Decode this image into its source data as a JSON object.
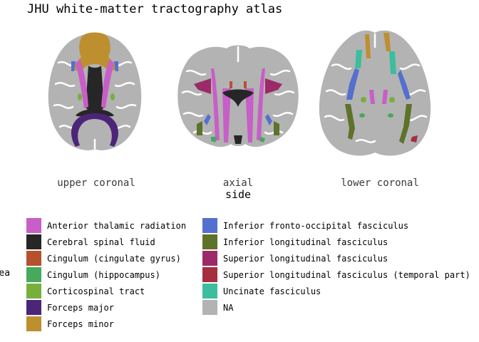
{
  "chart_data": {
    "type": "other",
    "title": "JHU white-matter tractography atlas",
    "xlabel": "side",
    "legend_title": "area",
    "legend_placement": "bottom",
    "views": [
      "upper coronal",
      "axial",
      "lower coronal"
    ],
    "legend": [
      {
        "name": "Anterior thalamic radiation",
        "color": "#C85EC8"
      },
      {
        "name": "Cerebral spinal fluid",
        "color": "#262626"
      },
      {
        "name": "Cingulum (cingulate gyrus)",
        "color": "#B5522D"
      },
      {
        "name": "Cingulum (hippocampus)",
        "color": "#45AA5C"
      },
      {
        "name": "Corticospinal tract",
        "color": "#77AF3E"
      },
      {
        "name": "Forceps major",
        "color": "#4C2579"
      },
      {
        "name": "Forceps minor",
        "color": "#BD8F2F"
      },
      {
        "name": "Inferior fronto-occipital fasciculus",
        "color": "#5470CE"
      },
      {
        "name": "Inferior longitudinal fasciculus",
        "color": "#5E7229"
      },
      {
        "name": "Superior longitudinal fasciculus",
        "color": "#9C2A68"
      },
      {
        "name": "Superior longitudinal fasciculus (temporal part)",
        "color": "#A52F3E"
      },
      {
        "name": "Uncinate fasciculus",
        "color": "#3CBE9E"
      },
      {
        "name": "NA",
        "color": "#B3B3B3"
      }
    ]
  }
}
